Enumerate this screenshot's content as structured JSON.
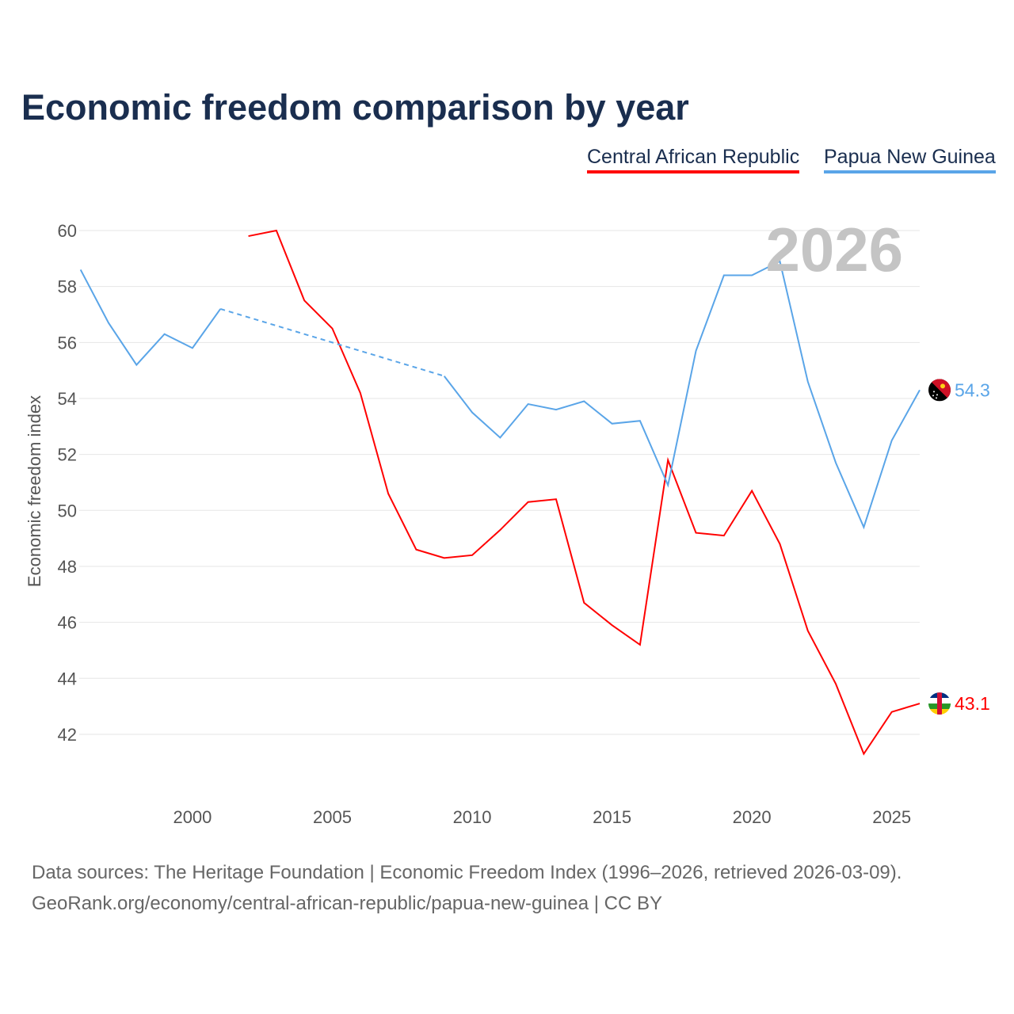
{
  "title": "Economic freedom comparison by year",
  "source_line1": "Data sources: The Heritage Foundation | Economic Freedom Index (1996–2026, retrieved 2026-03-09).",
  "source_line2": "GeoRank.org/economy/central-african-republic/papua-new-guinea | CC BY",
  "chart_data": {
    "type": "line",
    "title": "Economic freedom comparison by year",
    "xlabel": "",
    "ylabel": "Economic freedom index",
    "xlim": [
      1996,
      2026
    ],
    "ylim": [
      40.3,
      60
    ],
    "xticks": [
      2000,
      2005,
      2010,
      2015,
      2020,
      2025
    ],
    "yticks": [
      42,
      44,
      46,
      48,
      50,
      52,
      54,
      56,
      58,
      60
    ],
    "grid": true,
    "legend_position": "top-right",
    "watermark_year": "2026",
    "series": [
      {
        "name": "Central African Republic",
        "color": "#ff0000",
        "flag": "central-african-republic-flag",
        "end_label": "43.1",
        "x": [
          2002,
          2003,
          2004,
          2005,
          2006,
          2007,
          2008,
          2009,
          2010,
          2011,
          2012,
          2013,
          2014,
          2015,
          2016,
          2017,
          2018,
          2019,
          2020,
          2021,
          2022,
          2023,
          2024,
          2025,
          2026
        ],
        "values": [
          59.8,
          60.0,
          57.5,
          56.5,
          54.2,
          50.6,
          48.6,
          48.3,
          48.4,
          49.3,
          50.3,
          50.4,
          46.7,
          45.9,
          45.2,
          51.8,
          49.2,
          49.1,
          50.7,
          48.8,
          45.7,
          43.8,
          41.3,
          42.8,
          43.1
        ]
      },
      {
        "name": "Papua New Guinea",
        "color": "#5aa5e8",
        "flag": "papua-new-guinea-flag",
        "end_label": "54.3",
        "x": [
          1996,
          1997,
          1998,
          1999,
          2000,
          2001,
          2009,
          2010,
          2011,
          2012,
          2013,
          2014,
          2015,
          2016,
          2017,
          2018,
          2019,
          2020,
          2021,
          2022,
          2023,
          2024,
          2025,
          2026
        ],
        "values": [
          58.6,
          56.7,
          55.2,
          56.3,
          55.8,
          57.2,
          54.8,
          53.5,
          52.6,
          53.8,
          53.6,
          53.9,
          53.1,
          53.2,
          50.9,
          55.7,
          58.4,
          58.4,
          58.9,
          54.6,
          51.7,
          49.4,
          52.5,
          54.3
        ],
        "gap": [
          2001,
          2009
        ]
      }
    ]
  }
}
